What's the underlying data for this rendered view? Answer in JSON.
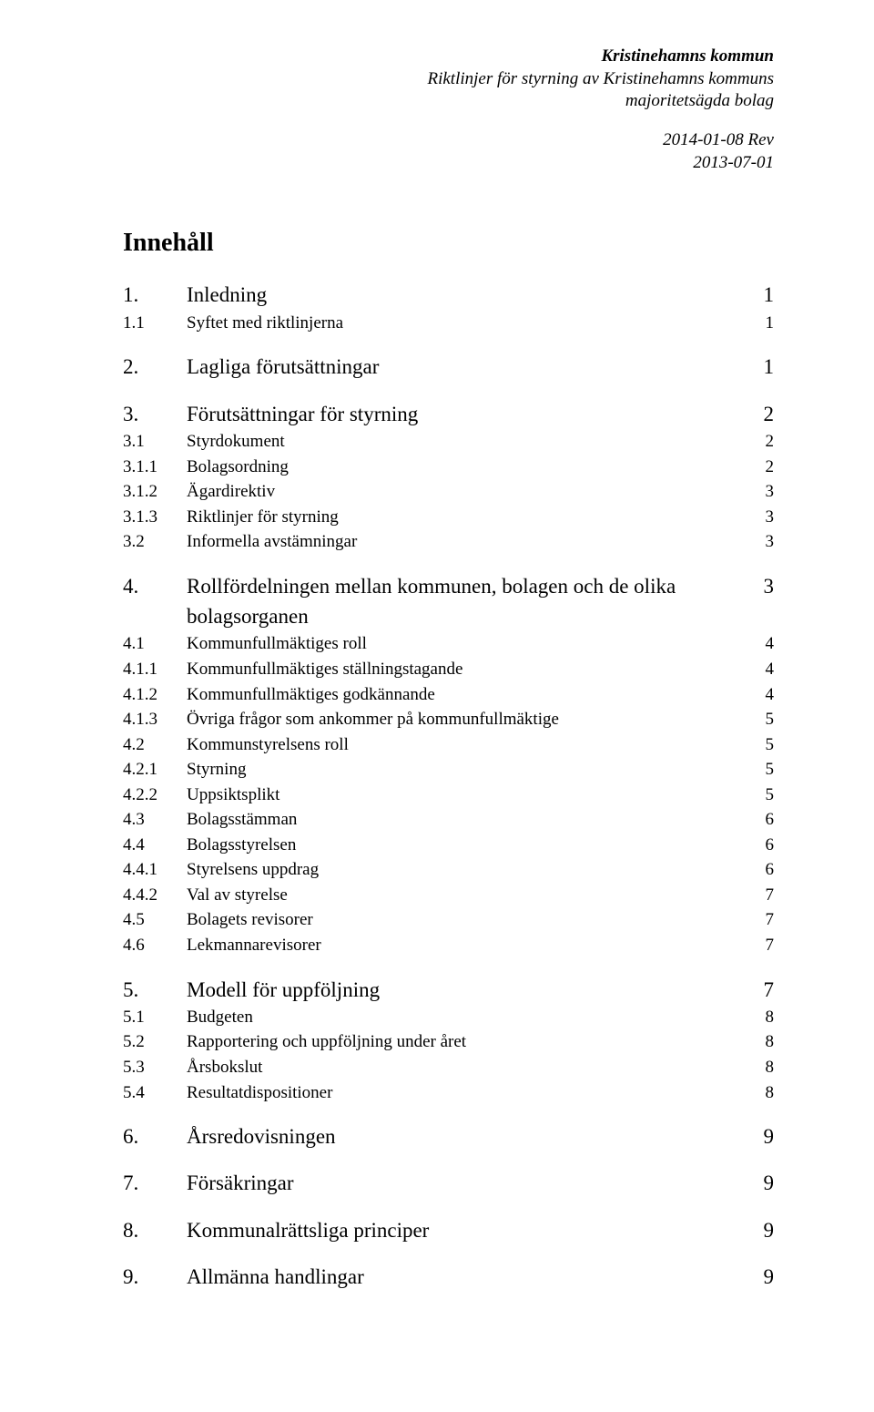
{
  "header": {
    "org": "Kristinehamns kommun",
    "sub1": "Riktlinjer för styrning av Kristinehamns kommuns",
    "sub2": "majoritetsägda bolag",
    "date1": "2014-01-08 Rev",
    "date2": "2013-07-01"
  },
  "title": "Innehåll",
  "toc": [
    {
      "level": 1,
      "num": "1.",
      "label": "Inledning",
      "page": "1",
      "gap_before": false
    },
    {
      "level": 2,
      "num": "1.1",
      "label": "Syftet med riktlinjerna",
      "page": "1",
      "gap_before": false
    },
    {
      "level": 1,
      "num": "2.",
      "label": "Lagliga förutsättningar",
      "page": "1",
      "gap_before": true
    },
    {
      "level": 1,
      "num": "3.",
      "label": "Förutsättningar för styrning",
      "page": "2",
      "gap_before": true
    },
    {
      "level": 2,
      "num": "3.1",
      "label": "Styrdokument",
      "page": "2",
      "gap_before": false
    },
    {
      "level": 3,
      "num": "3.1.1",
      "label": "Bolagsordning",
      "page": "2",
      "gap_before": false
    },
    {
      "level": 3,
      "num": "3.1.2",
      "label": "Ägardirektiv",
      "page": "3",
      "gap_before": false
    },
    {
      "level": 3,
      "num": "3.1.3",
      "label": "Riktlinjer för styrning",
      "page": "3",
      "gap_before": false
    },
    {
      "level": 2,
      "num": "3.2",
      "label": "Informella avstämningar",
      "page": "3",
      "gap_before": false
    },
    {
      "level": 1,
      "num": "4.",
      "label": "Rollfördelningen mellan kommunen, bolagen och de olika bolagsorganen",
      "page": "3",
      "gap_before": true
    },
    {
      "level": 2,
      "num": "4.1",
      "label": "Kommunfullmäktiges roll",
      "page": "4",
      "gap_before": false
    },
    {
      "level": 3,
      "num": "4.1.1",
      "label": "Kommunfullmäktiges ställningstagande",
      "page": "4",
      "gap_before": false
    },
    {
      "level": 3,
      "num": "4.1.2",
      "label": "Kommunfullmäktiges godkännande",
      "page": "4",
      "gap_before": false
    },
    {
      "level": 3,
      "num": "4.1.3",
      "label": "Övriga frågor som ankommer på kommunfullmäktige",
      "page": "5",
      "gap_before": false
    },
    {
      "level": 2,
      "num": "4.2",
      "label": "Kommunstyrelsens roll",
      "page": "5",
      "gap_before": false
    },
    {
      "level": 3,
      "num": "4.2.1",
      "label": "Styrning",
      "page": "5",
      "gap_before": false
    },
    {
      "level": 3,
      "num": "4.2.2",
      "label": "Uppsiktsplikt",
      "page": "5",
      "gap_before": false
    },
    {
      "level": 2,
      "num": "4.3",
      "label": "Bolagsstämman",
      "page": "6",
      "gap_before": false
    },
    {
      "level": 2,
      "num": "4.4",
      "label": "Bolagsstyrelsen",
      "page": "6",
      "gap_before": false
    },
    {
      "level": 3,
      "num": "4.4.1",
      "label": "Styrelsens uppdrag",
      "page": "6",
      "gap_before": false
    },
    {
      "level": 3,
      "num": "4.4.2",
      "label": "Val av styrelse",
      "page": "7",
      "gap_before": false
    },
    {
      "level": 2,
      "num": "4.5",
      "label": "Bolagets revisorer",
      "page": "7",
      "gap_before": false
    },
    {
      "level": 2,
      "num": "4.6",
      "label": "Lekmannarevisorer",
      "page": "7",
      "gap_before": false
    },
    {
      "level": 1,
      "num": "5.",
      "label": "Modell för uppföljning",
      "page": "7",
      "gap_before": true
    },
    {
      "level": 2,
      "num": "5.1",
      "label": "Budgeten",
      "page": "8",
      "gap_before": false
    },
    {
      "level": 2,
      "num": "5.2",
      "label": "Rapportering och uppföljning under året",
      "page": "8",
      "gap_before": false
    },
    {
      "level": 2,
      "num": "5.3",
      "label": "Årsbokslut",
      "page": "8",
      "gap_before": false
    },
    {
      "level": 2,
      "num": "5.4",
      "label": "Resultatdispositioner",
      "page": "8",
      "gap_before": false
    },
    {
      "level": 1,
      "num": "6.",
      "label": "Årsredovisningen",
      "page": "9",
      "gap_before": true
    },
    {
      "level": 1,
      "num": "7.",
      "label": "Försäkringar",
      "page": "9",
      "gap_before": true
    },
    {
      "level": 1,
      "num": "8.",
      "label": "Kommunalrättsliga principer",
      "page": "9",
      "gap_before": true
    },
    {
      "level": 1,
      "num": "9.",
      "label": "Allmänna handlingar",
      "page": "9",
      "gap_before": true
    }
  ]
}
